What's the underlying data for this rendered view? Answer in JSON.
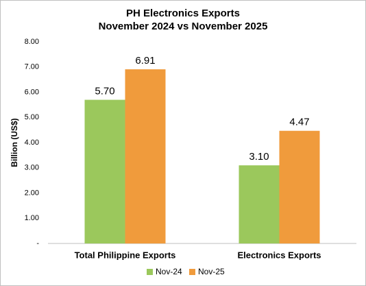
{
  "chart_data": {
    "type": "bar",
    "title": "PH Electronics Exports",
    "subtitle": "November 2024 vs November 2025",
    "y_axis_label": "Billion (US$)",
    "categories": [
      "Total Philippine Exports",
      "Electronics Exports"
    ],
    "series": [
      {
        "name": "Nov-24",
        "color": "#9bc85c",
        "values": [
          5.7,
          3.1
        ],
        "value_labels": [
          "5.70",
          "3.10"
        ]
      },
      {
        "name": "Nov-25",
        "color": "#f09b3c",
        "values": [
          6.91,
          4.47
        ]
      }
    ],
    "ylim": [
      0,
      8
    ],
    "yticks": [
      {
        "value": 0,
        "label": "-"
      },
      {
        "value": 1,
        "label": "1.00"
      },
      {
        "value": 2,
        "label": "2.00"
      },
      {
        "value": 3,
        "label": "3.00"
      },
      {
        "value": 4,
        "label": "4.00"
      },
      {
        "value": 5,
        "label": "5.00"
      },
      {
        "value": 6,
        "label": "6.00"
      },
      {
        "value": 7,
        "label": "7.00"
      },
      {
        "value": 8,
        "label": "8.00"
      }
    ],
    "grid": false,
    "legend": "bottom"
  }
}
